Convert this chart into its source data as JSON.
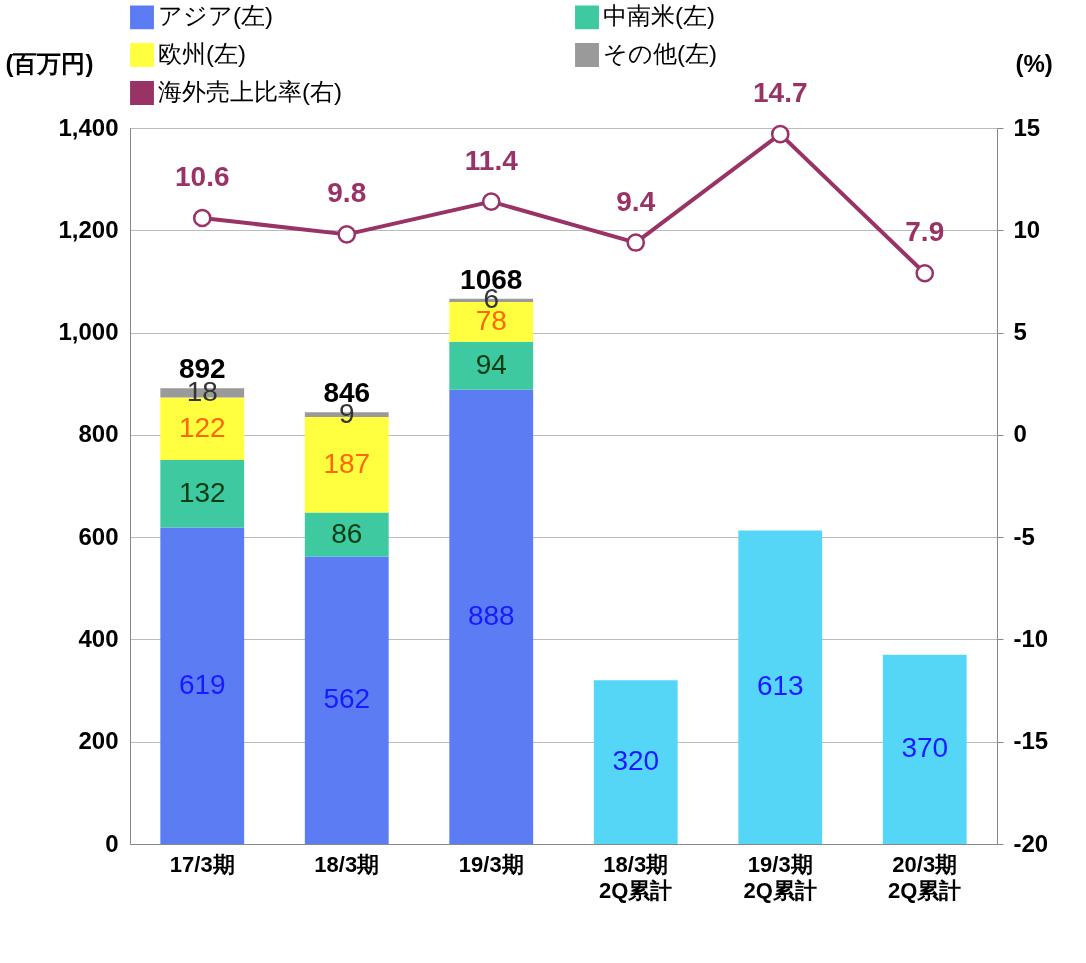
{
  "chart_data": {
    "type": "bar",
    "stacked": true,
    "categories": [
      "17/3期",
      "18/3期",
      "19/3期",
      "18/3期\n2Q累計",
      "19/3期\n2Q累計",
      "20/3期\n2Q累計"
    ],
    "series": [
      {
        "name": "アジア(左)",
        "color": "#5b7cf2",
        "values": [
          619,
          562,
          888,
          null,
          null,
          null
        ]
      },
      {
        "name": "中南米(左)",
        "color": "#3ec9a0",
        "values": [
          132,
          86,
          94,
          null,
          null,
          null
        ]
      },
      {
        "name": "欧州(左)",
        "color": "#ffff40",
        "values": [
          122,
          187,
          78,
          null,
          null,
          null
        ]
      },
      {
        "name": "その他(左)",
        "color": "#9a9a9a",
        "values": [
          18,
          9,
          6,
          null,
          null,
          null
        ]
      },
      {
        "color": "#55d6f7",
        "values": [
          null,
          null,
          null,
          320,
          613,
          370
        ]
      },
      {
        "name": "海外売上比率(右)",
        "type": "line",
        "axis": "y2",
        "color": "#993366",
        "values": [
          10.6,
          9.8,
          11.4,
          9.4,
          14.7,
          7.9
        ]
      }
    ],
    "totals": [
      "892",
      "846",
      "1068",
      null,
      null,
      null
    ],
    "data_labels": true,
    "marker": "circle",
    "grid": "y",
    "legend": "top",
    "ylabel": "(百万円)",
    "y2label": "(%)",
    "ylim": [
      0,
      1400
    ],
    "yticks": [
      0,
      200,
      400,
      600,
      800,
      {
        "value": 1000,
        "label": "1,000"
      },
      {
        "value": 1200,
        "label": "1,200"
      },
      {
        "value": 1400,
        "label": "1,400"
      }
    ],
    "y2lim": [
      -20,
      15
    ],
    "y2ticks": [
      -20,
      -15,
      -10,
      -5,
      0,
      5,
      10,
      15
    ]
  }
}
